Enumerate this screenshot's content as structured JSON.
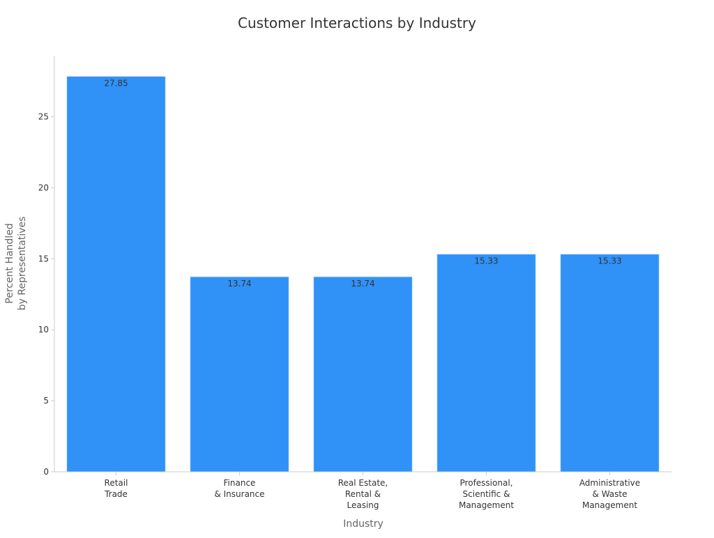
{
  "colors": {
    "bar": "#3091f7",
    "bar_stroke": "#d0e4fb",
    "axis": "#cccccc",
    "text": "#333333",
    "axis_title": "#666666"
  },
  "chart_data": {
    "type": "bar",
    "title": "Customer Interactions by Industry",
    "xlabel": "Industry",
    "ylabel": [
      "Percent Handled",
      "by Representatives"
    ],
    "categories": [
      [
        "Retail",
        "Trade"
      ],
      [
        "Finance",
        "& Insurance"
      ],
      [
        "Real Estate,",
        "Rental &",
        "Leasing"
      ],
      [
        "Professional,",
        "Scientific &",
        "Management"
      ],
      [
        "Administrative",
        "& Waste",
        "Management"
      ]
    ],
    "values": [
      27.85,
      13.74,
      13.74,
      15.33,
      15.33
    ],
    "data_labels": [
      "27.85",
      "13.74",
      "13.74",
      "15.33",
      "15.33"
    ],
    "ylim": [
      0,
      29.3
    ],
    "yticks": [
      0,
      5,
      10,
      15,
      20,
      25
    ],
    "grid": false,
    "legend": "none"
  }
}
